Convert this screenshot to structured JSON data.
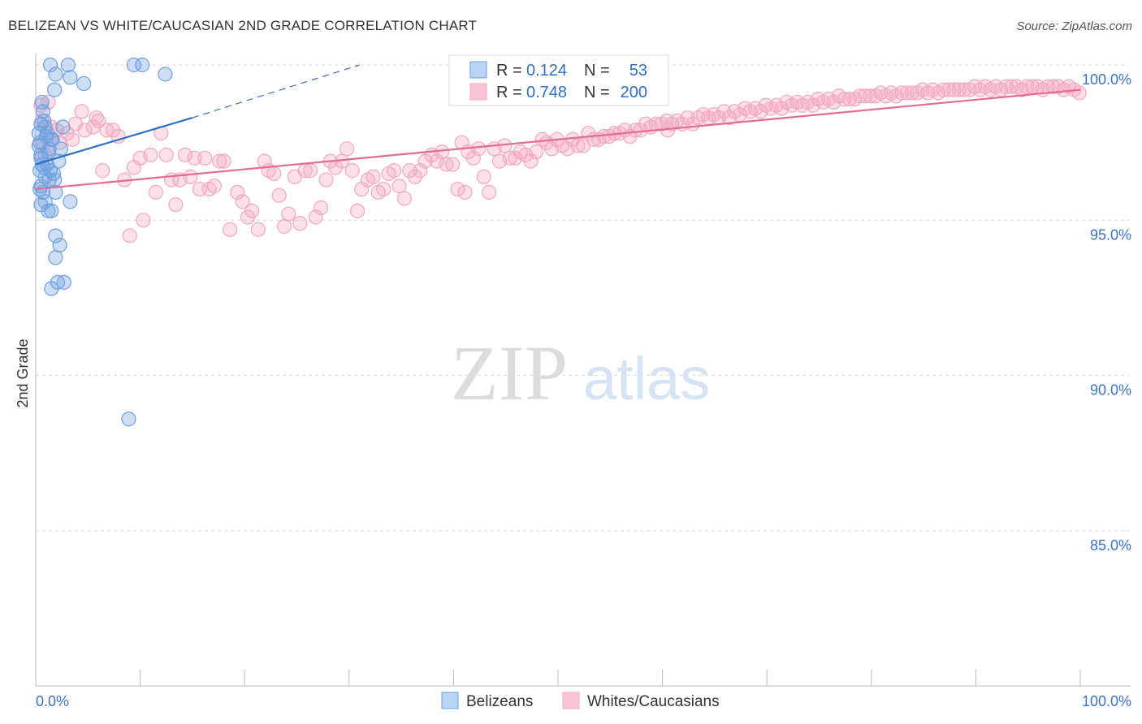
{
  "title": "BELIZEAN VS WHITE/CAUCASIAN 2ND GRADE CORRELATION CHART",
  "source": "Source: ZipAtlas.com",
  "watermark": {
    "zip": "ZIP",
    "atlas": "atlas"
  },
  "chart_data": {
    "type": "scatter",
    "title": "BELIZEAN VS WHITE/CAUCASIAN 2ND GRADE CORRELATION CHART",
    "xlabel": "",
    "ylabel": "2nd Grade",
    "xlim": [
      0,
      100
    ],
    "ylim": [
      80,
      100.5
    ],
    "x_tick_labels": {
      "min": "0.0%",
      "max": "100.0%"
    },
    "y_ticks": [
      {
        "value": 100,
        "label": "100.0%"
      },
      {
        "value": 95,
        "label": "95.0%"
      },
      {
        "value": 90,
        "label": "90.0%"
      },
      {
        "value": 85,
        "label": "85.0%"
      }
    ],
    "legend": {
      "position": "top-center",
      "entries": [
        {
          "r_label": "R =",
          "r": "0.124",
          "n_label": "N =",
          "n": "53"
        },
        {
          "r_label": "R =",
          "r": "0.748",
          "n_label": "N =",
          "n": "200"
        }
      ]
    },
    "series": [
      {
        "name": "Belizeans",
        "color": "#6fa0e0",
        "line_color": "#2f6fc7",
        "r": 0.124,
        "n": 53,
        "trend": {
          "x0": 0,
          "y0": 96.8,
          "x1": 15,
          "y1": 98.3,
          "dash_to_x": 31,
          "dash_to_y": 100
        },
        "points": [
          [
            1.4,
            100
          ],
          [
            3.1,
            100
          ],
          [
            9.4,
            100
          ],
          [
            10.2,
            100
          ],
          [
            1.9,
            99.7
          ],
          [
            3.3,
            99.6
          ],
          [
            12.4,
            99.7
          ],
          [
            1.8,
            99.2
          ],
          [
            4.6,
            99.4
          ],
          [
            0.6,
            98.8
          ],
          [
            0.7,
            98.5
          ],
          [
            0.8,
            98.2
          ],
          [
            0.9,
            98
          ],
          [
            2.6,
            98
          ],
          [
            0.3,
            97.8
          ],
          [
            1.1,
            97.8
          ],
          [
            1.5,
            97.6
          ],
          [
            0.4,
            97.5
          ],
          [
            1.3,
            97.3
          ],
          [
            2.4,
            97.3
          ],
          [
            0.5,
            97
          ],
          [
            0.6,
            96.8
          ],
          [
            2.2,
            96.9
          ],
          [
            0.4,
            96.6
          ],
          [
            1.4,
            96.6
          ],
          [
            1.7,
            96.5
          ],
          [
            0.9,
            96.4
          ],
          [
            1.8,
            96.3
          ],
          [
            1.3,
            96.3
          ],
          [
            0.5,
            96.1
          ],
          [
            0.9,
            95.6
          ],
          [
            3.3,
            95.6
          ],
          [
            0.5,
            95.5
          ],
          [
            1.2,
            95.3
          ],
          [
            1.5,
            95.3
          ],
          [
            1.9,
            94.5
          ],
          [
            2.3,
            94.2
          ],
          [
            1.9,
            93.8
          ],
          [
            2.1,
            93
          ],
          [
            2.7,
            93
          ],
          [
            1.5,
            92.8
          ],
          [
            8.9,
            88.6
          ],
          [
            0.3,
            97.4
          ],
          [
            0.5,
            97.1
          ],
          [
            1,
            97.7
          ],
          [
            1.6,
            97.6
          ],
          [
            0.8,
            96.7
          ],
          [
            1.1,
            96.8
          ],
          [
            0.4,
            96
          ],
          [
            0.7,
            95.9
          ],
          [
            1.9,
            95.9
          ],
          [
            0.5,
            98.1
          ],
          [
            1.2,
            97.2
          ]
        ]
      },
      {
        "name": "Whites/Caucasians",
        "color": "#f3a7c0",
        "line_color": "#e46a98",
        "r": 0.748,
        "n": 200,
        "trend": {
          "x0": 0,
          "y0": 96,
          "x1": 100,
          "y1": 99.2
        },
        "points": [
          [
            0.5,
            98.7
          ],
          [
            0.6,
            98.2
          ],
          [
            0.7,
            97.5
          ],
          [
            0.9,
            97.1
          ],
          [
            1.2,
            98.8
          ],
          [
            1.5,
            98
          ],
          [
            2,
            97.9
          ],
          [
            2.3,
            97.5
          ],
          [
            3,
            97.8
          ],
          [
            3.8,
            98.1
          ],
          [
            4.4,
            98.5
          ],
          [
            4.7,
            97.9
          ],
          [
            5.5,
            98
          ],
          [
            5.8,
            98.3
          ],
          [
            6.4,
            96.6
          ],
          [
            6.8,
            97.9
          ],
          [
            7.4,
            97.9
          ],
          [
            7.9,
            97.7
          ],
          [
            8.5,
            96.3
          ],
          [
            9.0,
            94.5
          ],
          [
            9.4,
            96.7
          ],
          [
            10,
            97
          ],
          [
            10.3,
            95
          ],
          [
            11,
            97.1
          ],
          [
            11.5,
            95.9
          ],
          [
            12,
            97.8
          ],
          [
            12.5,
            97.1
          ],
          [
            13,
            96.3
          ],
          [
            13.4,
            95.5
          ],
          [
            13.8,
            96.3
          ],
          [
            14.3,
            97.1
          ],
          [
            14.8,
            96.4
          ],
          [
            15.2,
            97
          ],
          [
            15.7,
            96
          ],
          [
            16.2,
            97
          ],
          [
            16.6,
            96
          ],
          [
            17.1,
            96.1
          ],
          [
            17.6,
            96.9
          ],
          [
            18,
            96.9
          ],
          [
            18.6,
            94.7
          ],
          [
            19.3,
            95.9
          ],
          [
            19.8,
            95.6
          ],
          [
            20.3,
            95.1
          ],
          [
            20.7,
            95.3
          ],
          [
            21.3,
            94.7
          ],
          [
            21.9,
            96.9
          ],
          [
            22.3,
            96.6
          ],
          [
            22.8,
            96.5
          ],
          [
            23.3,
            95.8
          ],
          [
            23.8,
            94.8
          ],
          [
            24.2,
            95.2
          ],
          [
            24.8,
            96.4
          ],
          [
            25.3,
            94.9
          ],
          [
            25.8,
            96.6
          ],
          [
            26.3,
            96.6
          ],
          [
            26.8,
            95.1
          ],
          [
            27.3,
            95.4
          ],
          [
            27.8,
            96.3
          ],
          [
            28.2,
            96.9
          ],
          [
            28.7,
            96.7
          ],
          [
            29.3,
            96.9
          ],
          [
            29.8,
            97.3
          ],
          [
            30.3,
            96.6
          ],
          [
            30.8,
            95.3
          ],
          [
            31.2,
            96
          ],
          [
            31.8,
            96.3
          ],
          [
            32.3,
            96.4
          ],
          [
            32.8,
            95.9
          ],
          [
            33.3,
            96
          ],
          [
            33.8,
            96.5
          ],
          [
            34.3,
            96.6
          ],
          [
            34.8,
            96.1
          ],
          [
            35.3,
            95.7
          ],
          [
            35.8,
            96.6
          ],
          [
            36.3,
            96.4
          ],
          [
            36.8,
            96.6
          ],
          [
            37.3,
            96.9
          ],
          [
            37.9,
            97.1
          ],
          [
            38.4,
            96.9
          ],
          [
            38.9,
            97.2
          ],
          [
            39.3,
            96.8
          ],
          [
            39.9,
            96.8
          ],
          [
            40.4,
            96
          ],
          [
            40.8,
            97.5
          ],
          [
            41.4,
            97.2
          ],
          [
            41.9,
            97
          ],
          [
            42.4,
            97.3
          ],
          [
            42.9,
            96.4
          ],
          [
            43.4,
            95.9
          ],
          [
            43.9,
            97.3
          ],
          [
            44.4,
            96.9
          ],
          [
            44.9,
            97.4
          ],
          [
            45.4,
            97
          ],
          [
            45.9,
            97
          ],
          [
            46.4,
            97.2
          ],
          [
            46.9,
            97.1
          ],
          [
            47.4,
            96.9
          ],
          [
            47.9,
            97.2
          ],
          [
            48.5,
            97.6
          ],
          [
            48.9,
            97.5
          ],
          [
            49.4,
            97.3
          ],
          [
            49.9,
            97.6
          ],
          [
            50.4,
            97.4
          ],
          [
            50.9,
            97.3
          ],
          [
            51.4,
            97.6
          ],
          [
            51.9,
            97.4
          ],
          [
            52.4,
            97.4
          ],
          [
            52.9,
            97.8
          ],
          [
            53.4,
            97.6
          ],
          [
            53.9,
            97.6
          ],
          [
            54.4,
            97.7
          ],
          [
            54.9,
            97.7
          ],
          [
            55.4,
            97.8
          ],
          [
            55.9,
            97.8
          ],
          [
            56.4,
            97.9
          ],
          [
            56.9,
            97.7
          ],
          [
            57.4,
            97.9
          ],
          [
            57.9,
            97.9
          ],
          [
            58.4,
            98.1
          ],
          [
            58.9,
            98
          ],
          [
            59.4,
            98.1
          ],
          [
            59.9,
            98.1
          ],
          [
            60.4,
            98.2
          ],
          [
            60.9,
            98.1
          ],
          [
            61.4,
            98.2
          ],
          [
            61.9,
            98.1
          ],
          [
            62.4,
            98.3
          ],
          [
            62.9,
            98.1
          ],
          [
            63.4,
            98.3
          ],
          [
            63.9,
            98.4
          ],
          [
            64.4,
            98.3
          ],
          [
            64.9,
            98.4
          ],
          [
            65.4,
            98.3
          ],
          [
            65.9,
            98.5
          ],
          [
            66.4,
            98.3
          ],
          [
            66.9,
            98.5
          ],
          [
            67.4,
            98.4
          ],
          [
            67.9,
            98.6
          ],
          [
            68.4,
            98.5
          ],
          [
            68.9,
            98.6
          ],
          [
            69.4,
            98.5
          ],
          [
            69.9,
            98.7
          ],
          [
            70.4,
            98.6
          ],
          [
            70.9,
            98.7
          ],
          [
            71.4,
            98.6
          ],
          [
            71.9,
            98.8
          ],
          [
            72.4,
            98.7
          ],
          [
            72.9,
            98.8
          ],
          [
            73.4,
            98.7
          ],
          [
            73.9,
            98.8
          ],
          [
            74.4,
            98.7
          ],
          [
            74.9,
            98.9
          ],
          [
            75.4,
            98.8
          ],
          [
            75.9,
            98.9
          ],
          [
            76.4,
            98.8
          ],
          [
            76.9,
            99
          ],
          [
            77.4,
            98.9
          ],
          [
            77.9,
            98.9
          ],
          [
            78.4,
            98.9
          ],
          [
            78.9,
            99
          ],
          [
            79.4,
            99
          ],
          [
            79.9,
            99
          ],
          [
            80.4,
            99
          ],
          [
            80.9,
            99.1
          ],
          [
            81.4,
            99
          ],
          [
            81.9,
            99.1
          ],
          [
            82.4,
            99
          ],
          [
            82.9,
            99.1
          ],
          [
            83.4,
            99.1
          ],
          [
            83.9,
            99.1
          ],
          [
            84.4,
            99.1
          ],
          [
            84.9,
            99.2
          ],
          [
            85.4,
            99.1
          ],
          [
            85.9,
            99.2
          ],
          [
            86.4,
            99.1
          ],
          [
            86.9,
            99.2
          ],
          [
            87.4,
            99.2
          ],
          [
            87.9,
            99.2
          ],
          [
            88.4,
            99.2
          ],
          [
            88.9,
            99.2
          ],
          [
            89.4,
            99.2
          ],
          [
            89.9,
            99.3
          ],
          [
            90.4,
            99.2
          ],
          [
            90.9,
            99.3
          ],
          [
            91.4,
            99.2
          ],
          [
            91.9,
            99.3
          ],
          [
            92.4,
            99.2
          ],
          [
            92.9,
            99.3
          ],
          [
            93.4,
            99.3
          ],
          [
            93.9,
            99.3
          ],
          [
            94.4,
            99.2
          ],
          [
            94.9,
            99.3
          ],
          [
            95.4,
            99.3
          ],
          [
            95.9,
            99.3
          ],
          [
            96.4,
            99.2
          ],
          [
            96.9,
            99.3
          ],
          [
            97.4,
            99.3
          ],
          [
            97.9,
            99.3
          ],
          [
            98.4,
            99.2
          ],
          [
            98.9,
            99.3
          ],
          [
            99.4,
            99.2
          ],
          [
            99.9,
            99.1
          ],
          [
            3.5,
            97.6
          ],
          [
            6.0,
            98.2
          ],
          [
            60.5,
            97.9
          ],
          [
            41.1,
            95.9
          ]
        ]
      }
    ]
  },
  "bottom_legend": [
    {
      "label": "Belizeans"
    },
    {
      "label": "Whites/Caucasians"
    }
  ]
}
